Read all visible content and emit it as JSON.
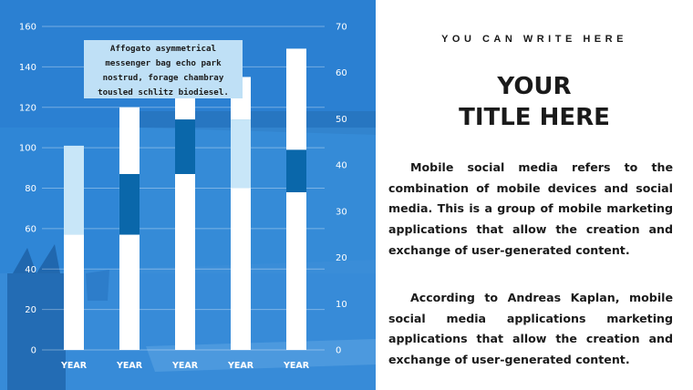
{
  "colors": {
    "panel_bg": "#2f86d6",
    "bar_white": "#ffffff",
    "segment_light": "#c8e6f8",
    "segment_dark": "#0a67aa",
    "callout_bg": "#bfe0f6"
  },
  "chart_data": {
    "type": "bar",
    "categories": [
      "YEAR",
      "YEAR",
      "YEAR",
      "YEAR",
      "YEAR"
    ],
    "series": [
      {
        "values": [
          57,
          57,
          87,
          80,
          78
        ],
        "role": "white base"
      },
      {
        "values": [
          44,
          30,
          27,
          34,
          21
        ],
        "role": "highlight segment"
      },
      {
        "values": [
          0,
          33,
          20,
          21,
          50
        ],
        "role": "white top"
      }
    ],
    "segment_colors": [
      "light",
      "dark",
      "dark",
      "light",
      "dark"
    ],
    "y_left": {
      "ticks": [
        0,
        20,
        40,
        60,
        80,
        100,
        120,
        140,
        160
      ],
      "ylim": [
        0,
        160
      ]
    },
    "y_right": {
      "ticks": [
        0,
        10,
        20,
        30,
        40,
        50,
        60,
        70
      ],
      "ylim": [
        0,
        70
      ]
    },
    "grid": true,
    "annotation": "Affogato asymmetrical messenger bag echo park nostrud, forage chambray tousled schlitz biodiesel."
  },
  "callout": {
    "line1": "Affogato asymmetrical",
    "line2": "messenger bag echo park",
    "line3": "nostrud, forage chambray",
    "line4": "tousled schlitz biodiesel."
  },
  "right": {
    "kicker": "YOU CAN WRITE HERE",
    "title_line1": "YOUR",
    "title_line2": "TITLE HERE",
    "para1": "Mobile social media refers to the combination of mobile devices and social media. This is a group of mobile marketing applications that allow the creation and exchange of user-generated content.",
    "para2": "According to Andreas Kaplan, mobile social media applications marketing applications that allow the creation and exchange of user-generated content."
  }
}
